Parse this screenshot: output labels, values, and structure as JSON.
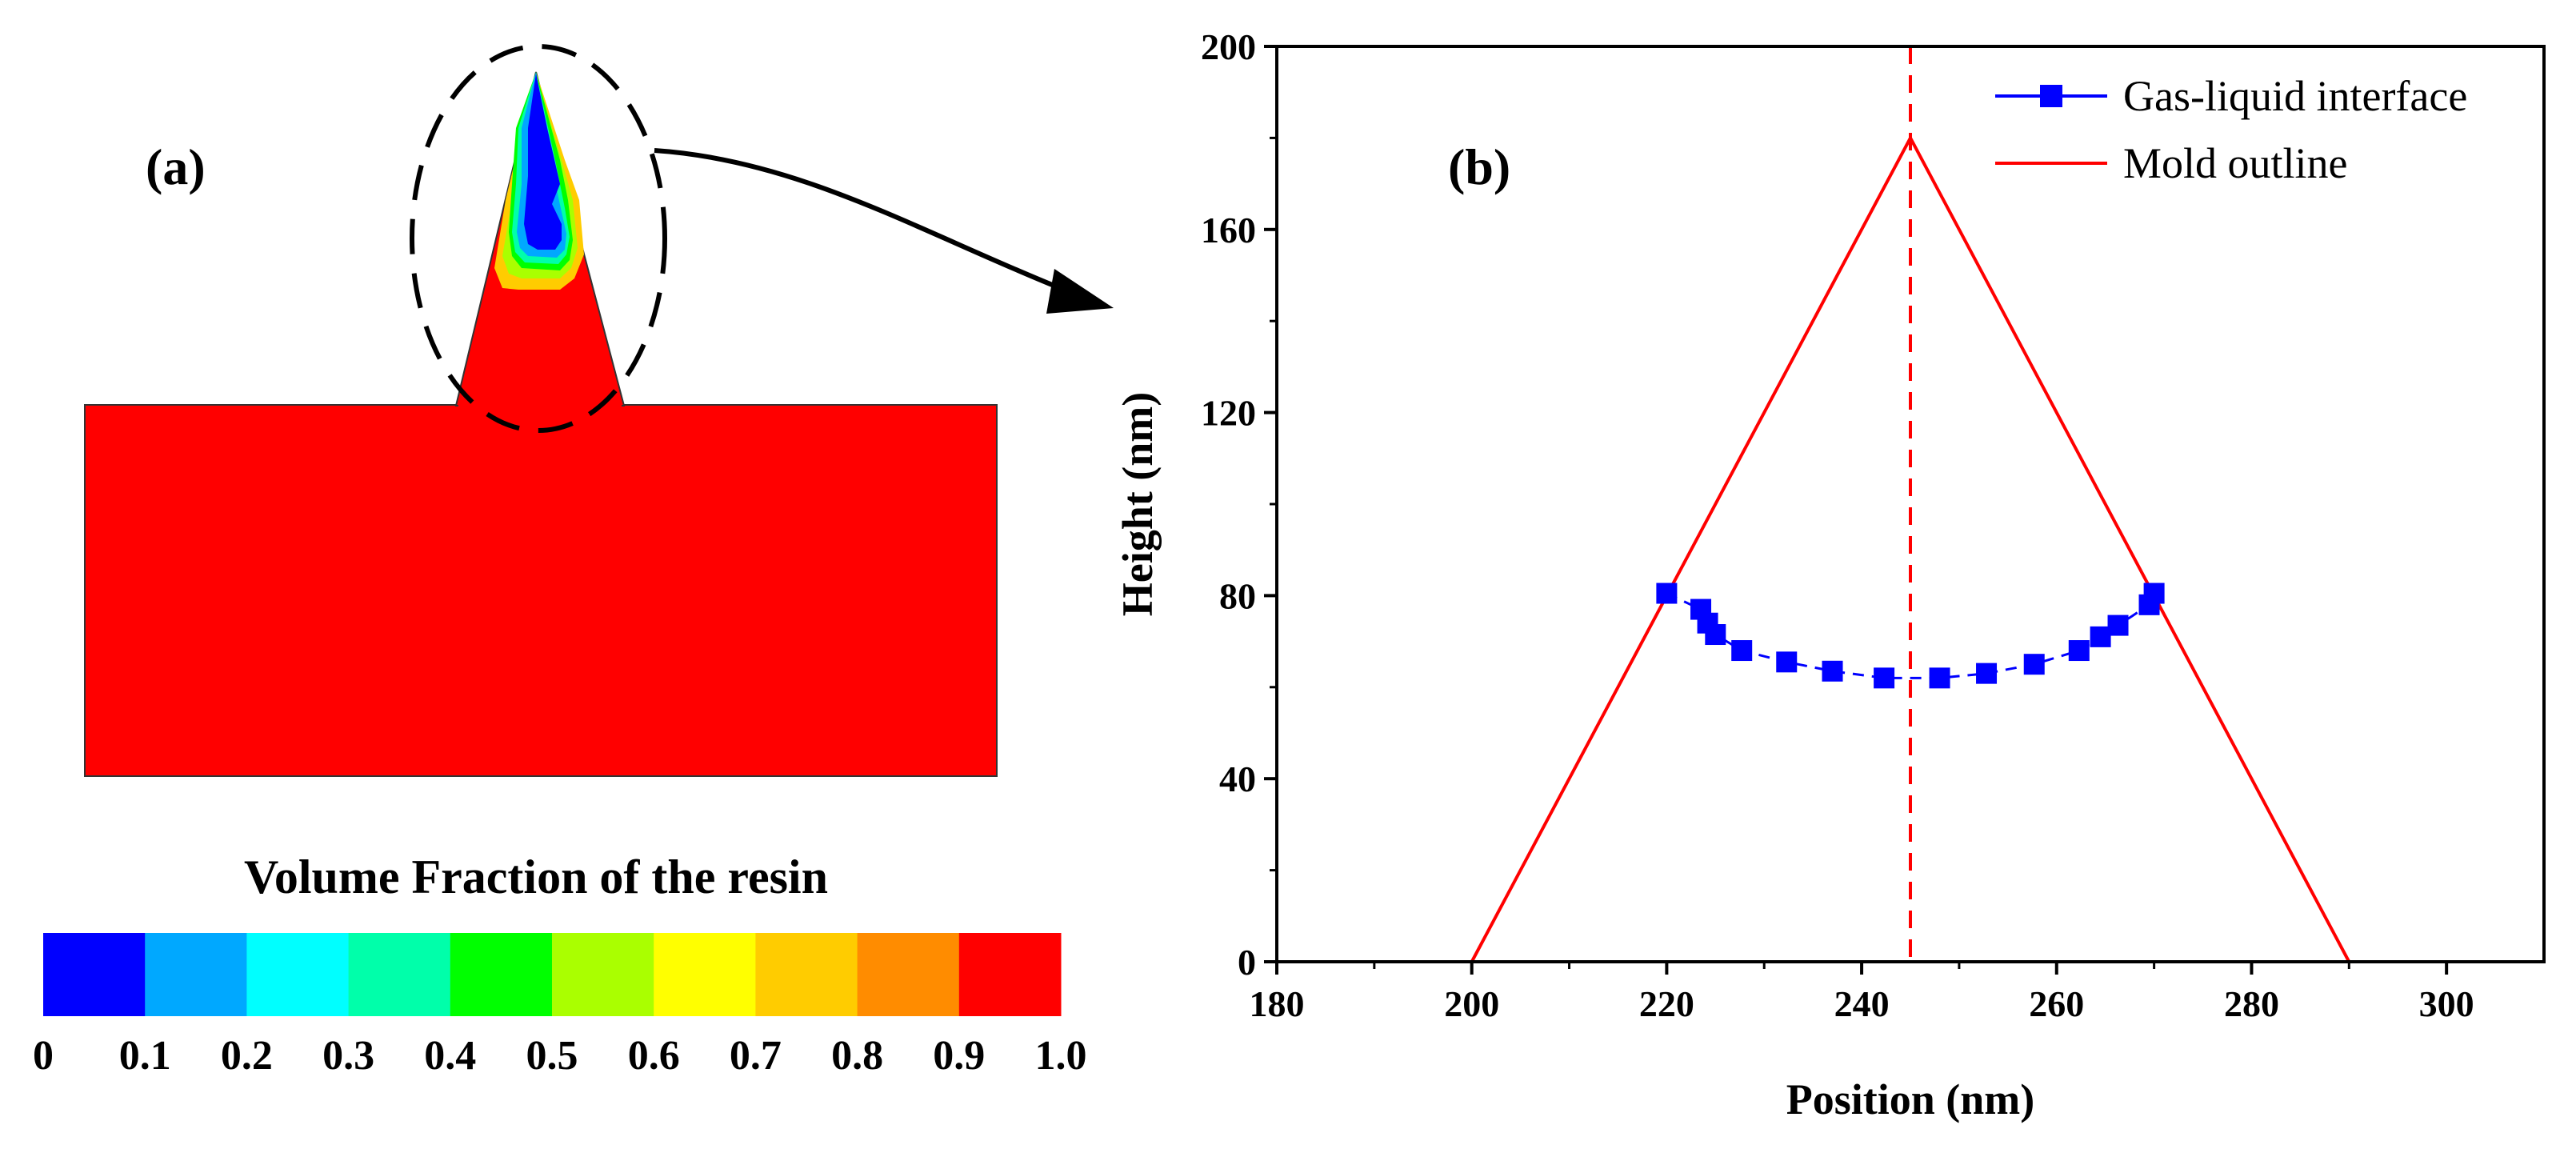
{
  "panel_a": {
    "label": "(a)",
    "colorbar_title": "Volume Fraction of the resin",
    "colorbar_colors": [
      "#0000ff",
      "#00a8ff",
      "#00ffff",
      "#00ffaa",
      "#00ff00",
      "#aaff00",
      "#ffff00",
      "#ffcc00",
      "#ff8c00",
      "#ff0000"
    ],
    "colorbar_ticks": [
      "0",
      "0.1",
      "0.2",
      "0.3",
      "0.4",
      "0.5",
      "0.6",
      "0.7",
      "0.8",
      "0.9",
      "1.0"
    ],
    "resin_color": "#ff0000"
  },
  "chart_data": {
    "type": "line",
    "panel_label": "(b)",
    "xlabel": "Position (nm)",
    "ylabel": "Height (nm)",
    "xlim": [
      180,
      310
    ],
    "ylim": [
      0,
      200
    ],
    "xticks": [
      180,
      200,
      220,
      240,
      260,
      280,
      300
    ],
    "yticks": [
      0,
      40,
      80,
      120,
      160,
      200
    ],
    "vline_x": 245,
    "series": [
      {
        "name": "Gas-liquid interface",
        "color": "#0000ff",
        "marker": "square",
        "x": [
          220,
          223.5,
          224.2,
          225,
          227.7,
          232.3,
          237,
          242.3,
          248,
          252.8,
          257.7,
          262.3,
          264.5,
          266.3,
          269.5,
          270
        ],
        "y": [
          80.5,
          77,
          74,
          71.5,
          68,
          65.5,
          63.5,
          62,
          62,
          63,
          65,
          68,
          71,
          73.5,
          78,
          80.5
        ]
      },
      {
        "name": "Mold outline",
        "color": "#ff0000",
        "marker": "none",
        "x": [
          200,
          245,
          290
        ],
        "y": [
          0,
          180,
          0
        ]
      }
    ]
  }
}
